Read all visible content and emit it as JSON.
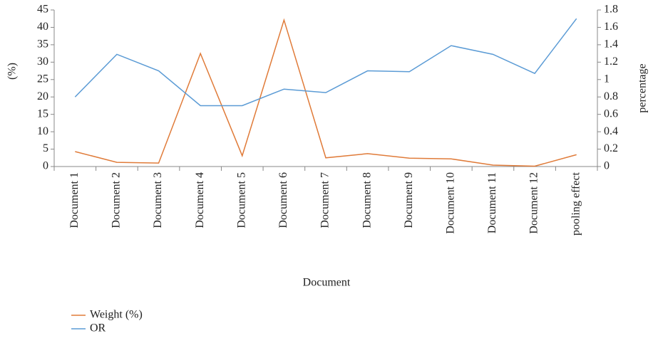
{
  "chart_data": {
    "type": "line",
    "x_label": "Document",
    "y_label": "(%)",
    "y2_label": "percentage",
    "categories": [
      "Document 1",
      "Document 2",
      "Document 3",
      "Document 4",
      "Document 5",
      "Document 6",
      "Document 7",
      "Document 8",
      "Document 9",
      "Document 10",
      "Document 11",
      "Document 12",
      "pooling effect"
    ],
    "series": [
      {
        "name": "Weight (%)",
        "color": "#e07b39",
        "axis": "y",
        "values": [
          4.3,
          1.2,
          1.0,
          32.5,
          3.1,
          42.1,
          2.5,
          3.7,
          2.4,
          2.2,
          0.4,
          0.1,
          3.4
        ]
      },
      {
        "name": "OR",
        "color": "#5b9bd5",
        "axis": "y2",
        "values": [
          0.8,
          1.29,
          1.1,
          0.7,
          0.7,
          0.89,
          0.85,
          1.1,
          1.09,
          1.39,
          1.29,
          1.07,
          1.7
        ]
      }
    ],
    "ylim": [
      0,
      45
    ],
    "yticks": [
      0,
      5,
      10,
      15,
      20,
      25,
      30,
      35,
      40,
      45
    ],
    "y2lim": [
      0,
      1.8
    ],
    "y2ticks": [
      0,
      0.2,
      0.4,
      0.6,
      0.8,
      1,
      1.2,
      1.4,
      1.6,
      1.8
    ],
    "grid": false,
    "legend": "bottom-left"
  }
}
